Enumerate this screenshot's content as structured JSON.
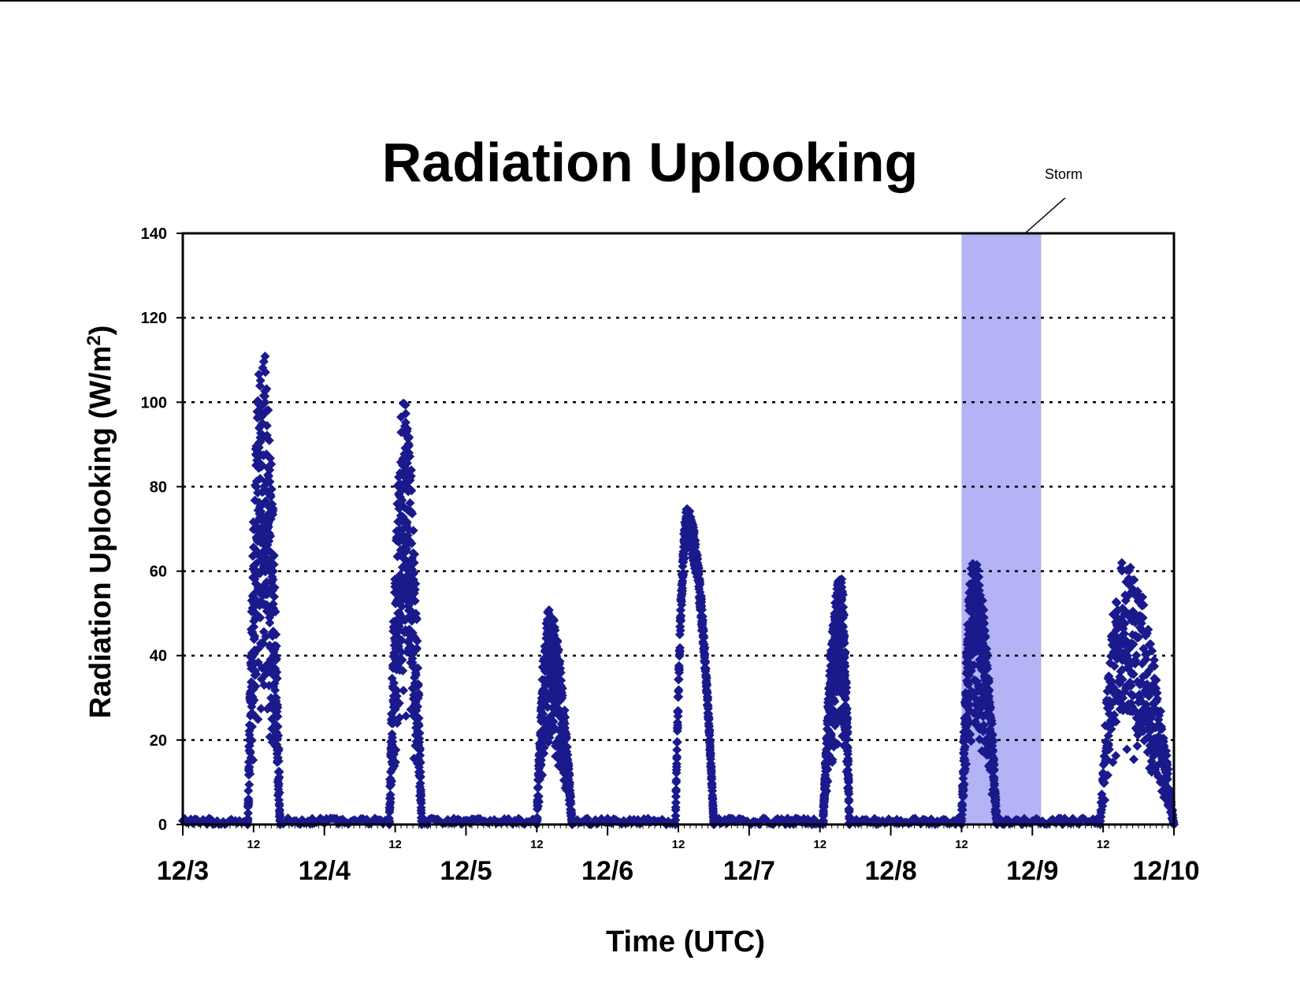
{
  "chart_data": {
    "type": "scatter",
    "title": "Radiation Uplooking",
    "xlabel": "Time (UTC)",
    "ylabel": "Radiation Uplooking (W/m",
    "ylabel_sup": "2",
    "ylabel_close": ")",
    "ylim": [
      0,
      140
    ],
    "yticks": [
      0,
      20,
      40,
      60,
      80,
      100,
      120,
      140
    ],
    "y_gridlines": [
      20,
      40,
      60,
      80,
      100,
      120
    ],
    "grid": "dotted horizontal",
    "xlim": [
      "12/3 00:00",
      "12/10 00:00"
    ],
    "x_major_ticks": [
      "12/3",
      "12/4",
      "12/5",
      "12/6",
      "12/7",
      "12/8",
      "12/9",
      "12/10"
    ],
    "x_midday_label": "12",
    "marker": "diamond",
    "marker_color": "#1a1a8c",
    "shaded_region": {
      "label": "Storm",
      "x_start": "12/8 12:00",
      "x_end": "12/9 01:30",
      "color": "#b3b3f5"
    },
    "series_profile": [
      {
        "date": "12/3",
        "peak_time": "13:30",
        "peak_value": 115,
        "noise": "high",
        "start": "11:00",
        "end": "16:30"
      },
      {
        "date": "12/4",
        "peak_time": "13:30",
        "peak_value": 101,
        "noise": "high",
        "start": "11:00",
        "end": "16:30"
      },
      {
        "date": "12/5",
        "peak_time": "14:00",
        "peak_value": 51,
        "noise": "medium",
        "start": "12:00",
        "end": "18:00"
      },
      {
        "date": "12/6",
        "peak_time": "13:30",
        "peak_value": 75,
        "noise": "low",
        "start": "11:30",
        "end": "18:00"
      },
      {
        "date": "12/7",
        "peak_time": "15:30",
        "peak_value": 59,
        "noise": "medium",
        "start": "12:30",
        "end": "17:00"
      },
      {
        "date": "12/8",
        "peak_time": "14:00",
        "peak_value": 63,
        "noise": "medium",
        "start": "12:00",
        "end": "18:00"
      },
      {
        "date": "12/9",
        "peak_time": "15:30",
        "peak_value": 63,
        "noise": "high",
        "start": "11:30",
        "end": "23:59"
      }
    ]
  }
}
